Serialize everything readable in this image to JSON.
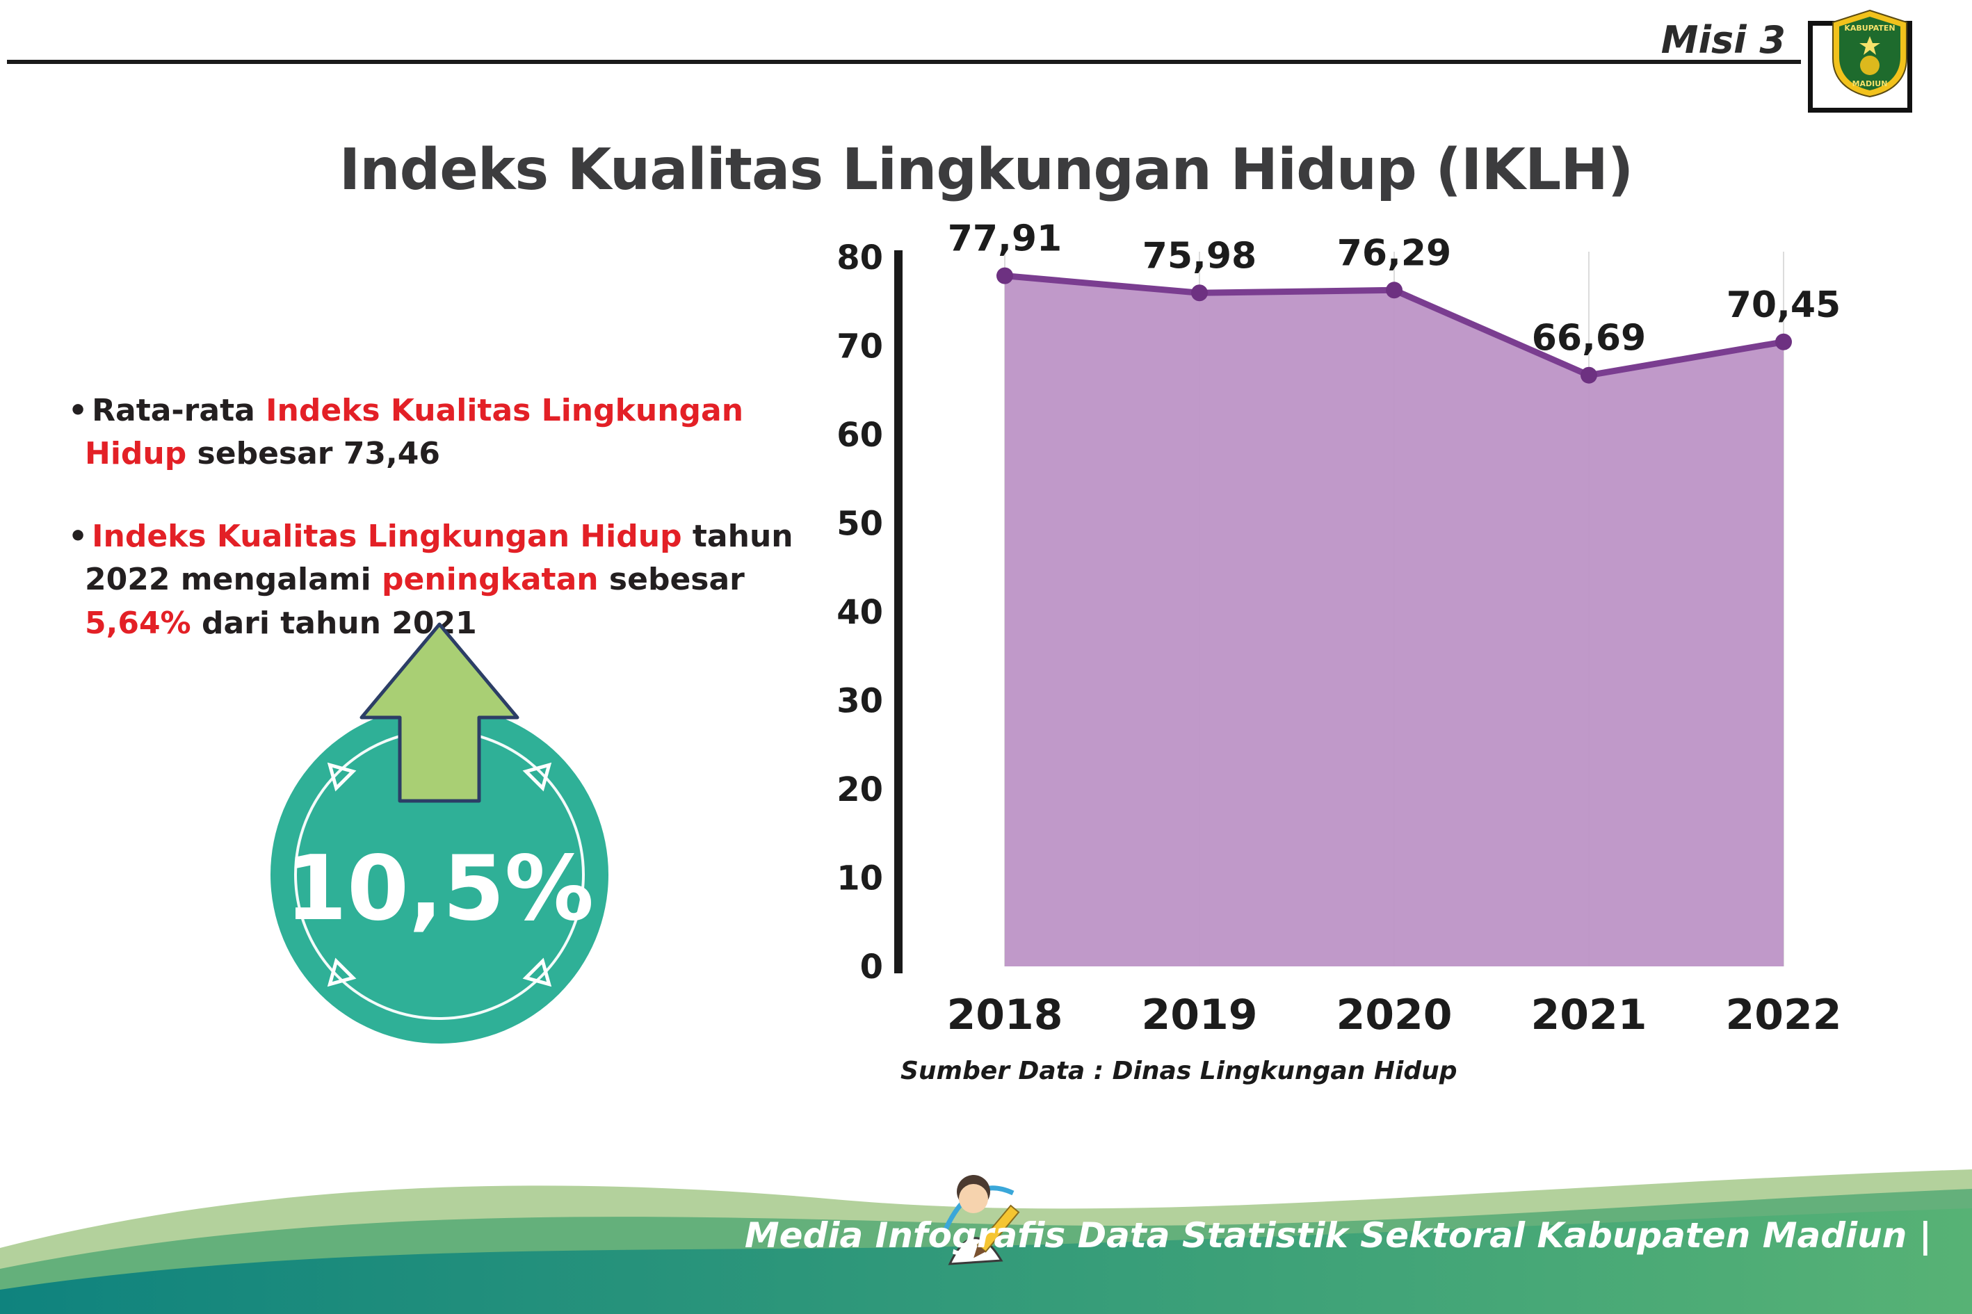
{
  "header": {
    "misi_label": "Misi 3",
    "title": "Indeks Kualitas Lingkungan Hidup (IKLH)",
    "logo": {
      "line1": "KABUPATEN",
      "line2": "MADIUN"
    }
  },
  "bullets": [
    {
      "segments": [
        {
          "text": "Rata-rata ",
          "style": "dark"
        },
        {
          "text": "Indeks Kualitas Lingkungan Hidup",
          "style": "red"
        },
        {
          "text": " sebesar 73,46",
          "style": "dark"
        }
      ]
    },
    {
      "segments": [
        {
          "text": "Indeks Kualitas Lingkungan Hidup",
          "style": "red"
        },
        {
          "text": " tahun 2022 mengalami ",
          "style": "dark"
        },
        {
          "text": "peningkatan",
          "style": "red"
        },
        {
          "text": " sebesar ",
          "style": "dark"
        },
        {
          "text": "5,64%",
          "style": "red"
        },
        {
          "text": " dari tahun 2021",
          "style": "dark"
        }
      ]
    }
  ],
  "highlight": {
    "value": "10,5%"
  },
  "chart_data": {
    "type": "area",
    "categories": [
      "2018",
      "2019",
      "2020",
      "2021",
      "2022"
    ],
    "values": [
      77.91,
      75.98,
      76.29,
      66.69,
      70.45
    ],
    "value_labels": [
      "77,91",
      "75,98",
      "76,29",
      "66,69",
      "70,45"
    ],
    "title": "",
    "xlabel": "",
    "ylabel": "",
    "ylim": [
      0,
      80
    ],
    "ytick_step": 10,
    "yticks": [
      0,
      10,
      20,
      30,
      40,
      50,
      60,
      70,
      80
    ],
    "grid": "vertical",
    "legend": "none",
    "caption": "Sumber Data : Dinas Lingkungan Hidup",
    "colors": {
      "area_fill": "#bd93c6",
      "line": "#7a3d90",
      "marker": "#6d3181"
    }
  },
  "footer": {
    "credit": "Media Infografis Data Statistik Sektoral Kabupaten Madiun |"
  },
  "colors": {
    "accent_red": "#e32026",
    "badge_teal": "#2fb097",
    "arrow_green": "#a9cf74"
  }
}
